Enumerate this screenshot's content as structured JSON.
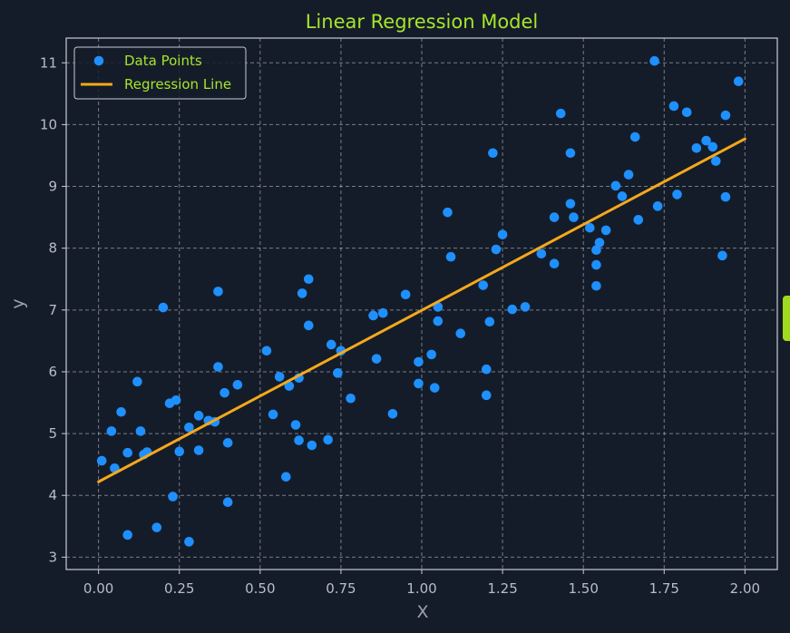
{
  "colors": {
    "background": "#151c29",
    "title": "#a5e62c",
    "axes_frame": "#c8ccd2",
    "grid": "#c8ccd2",
    "tick_text": "#b8bec7",
    "axis_label": "#9aa1aa",
    "points": "#1e90ff",
    "line": "#f5a81c",
    "legend_text": "#a5e62c",
    "legend_frame": "#c8ccd2",
    "side_tab": "#9edb1e"
  },
  "chart_data": {
    "type": "scatter",
    "title": "Linear Regression Model",
    "xlabel": "X",
    "ylabel": "y",
    "xlim": [
      -0.1,
      2.1
    ],
    "ylim": [
      2.8,
      11.4
    ],
    "x_ticks": [
      0,
      0.25,
      0.5,
      0.75,
      1.0,
      1.25,
      1.5,
      1.75,
      2.0
    ],
    "x_tick_labels": [
      "0.00",
      "0.25",
      "0.50",
      "0.75",
      "1.00",
      "1.25",
      "1.50",
      "1.75",
      "2.00"
    ],
    "y_ticks": [
      3,
      4,
      5,
      6,
      7,
      8,
      9,
      10,
      11
    ],
    "y_tick_labels": [
      "3",
      "4",
      "5",
      "6",
      "7",
      "8",
      "9",
      "10",
      "11"
    ],
    "grid": true,
    "legend": {
      "location": "top-left",
      "entries": [
        {
          "label": "Data Points",
          "marker": "circle"
        },
        {
          "label": "Regression Line",
          "marker": "line"
        }
      ]
    },
    "series": [
      {
        "name": "Data Points",
        "kind": "scatter",
        "points": [
          [
            0.01,
            4.56
          ],
          [
            0.04,
            5.04
          ],
          [
            0.05,
            4.44
          ],
          [
            0.07,
            5.35
          ],
          [
            0.09,
            3.36
          ],
          [
            0.09,
            4.69
          ],
          [
            0.12,
            5.84
          ],
          [
            0.13,
            5.04
          ],
          [
            0.14,
            4.66
          ],
          [
            0.15,
            4.7
          ],
          [
            0.18,
            3.48
          ],
          [
            0.2,
            7.04
          ],
          [
            0.22,
            5.49
          ],
          [
            0.23,
            3.98
          ],
          [
            0.24,
            5.54
          ],
          [
            0.25,
            4.71
          ],
          [
            0.28,
            3.25
          ],
          [
            0.28,
            5.1
          ],
          [
            0.31,
            5.29
          ],
          [
            0.31,
            4.73
          ],
          [
            0.34,
            5.21
          ],
          [
            0.36,
            5.19
          ],
          [
            0.37,
            7.3
          ],
          [
            0.37,
            6.08
          ],
          [
            0.39,
            5.66
          ],
          [
            0.4,
            4.85
          ],
          [
            0.4,
            3.89
          ],
          [
            0.43,
            5.79
          ],
          [
            0.52,
            6.34
          ],
          [
            0.54,
            5.31
          ],
          [
            0.56,
            5.92
          ],
          [
            0.58,
            4.3
          ],
          [
            0.59,
            5.77
          ],
          [
            0.61,
            5.14
          ],
          [
            0.62,
            5.9
          ],
          [
            0.62,
            4.89
          ],
          [
            0.63,
            7.27
          ],
          [
            0.65,
            7.5
          ],
          [
            0.65,
            6.75
          ],
          [
            0.66,
            4.81
          ],
          [
            0.71,
            4.9
          ],
          [
            0.72,
            6.44
          ],
          [
            0.74,
            5.98
          ],
          [
            0.75,
            6.34
          ],
          [
            0.78,
            5.57
          ],
          [
            0.85,
            6.91
          ],
          [
            0.86,
            6.21
          ],
          [
            0.88,
            6.95
          ],
          [
            0.91,
            5.32
          ],
          [
            0.95,
            7.25
          ],
          [
            0.99,
            6.16
          ],
          [
            0.99,
            5.81
          ],
          [
            1.03,
            6.28
          ],
          [
            1.04,
            5.74
          ],
          [
            1.05,
            7.05
          ],
          [
            1.05,
            6.82
          ],
          [
            1.08,
            8.58
          ],
          [
            1.09,
            7.86
          ],
          [
            1.12,
            6.62
          ],
          [
            1.19,
            7.4
          ],
          [
            1.2,
            6.04
          ],
          [
            1.2,
            5.62
          ],
          [
            1.21,
            6.81
          ],
          [
            1.22,
            9.54
          ],
          [
            1.23,
            7.98
          ],
          [
            1.25,
            8.22
          ],
          [
            1.28,
            7.01
          ],
          [
            1.32,
            7.05
          ],
          [
            1.37,
            7.91
          ],
          [
            1.41,
            7.75
          ],
          [
            1.41,
            8.5
          ],
          [
            1.43,
            10.18
          ],
          [
            1.46,
            9.54
          ],
          [
            1.46,
            8.72
          ],
          [
            1.47,
            8.5
          ],
          [
            1.52,
            8.33
          ],
          [
            1.54,
            7.39
          ],
          [
            1.54,
            7.73
          ],
          [
            1.54,
            7.97
          ],
          [
            1.55,
            8.09
          ],
          [
            1.57,
            8.29
          ],
          [
            1.6,
            9.01
          ],
          [
            1.62,
            8.84
          ],
          [
            1.64,
            9.19
          ],
          [
            1.66,
            9.8
          ],
          [
            1.67,
            8.46
          ],
          [
            1.72,
            11.03
          ],
          [
            1.73,
            8.68
          ],
          [
            1.78,
            10.3
          ],
          [
            1.79,
            8.87
          ],
          [
            1.82,
            10.2
          ],
          [
            1.85,
            9.62
          ],
          [
            1.88,
            9.74
          ],
          [
            1.9,
            9.64
          ],
          [
            1.91,
            9.41
          ],
          [
            1.93,
            7.88
          ],
          [
            1.94,
            8.83
          ],
          [
            1.94,
            10.15
          ],
          [
            1.98,
            10.7
          ]
        ]
      },
      {
        "name": "Regression Line",
        "kind": "line",
        "x": [
          0.0,
          2.0
        ],
        "y": [
          4.22,
          9.77
        ]
      }
    ]
  }
}
